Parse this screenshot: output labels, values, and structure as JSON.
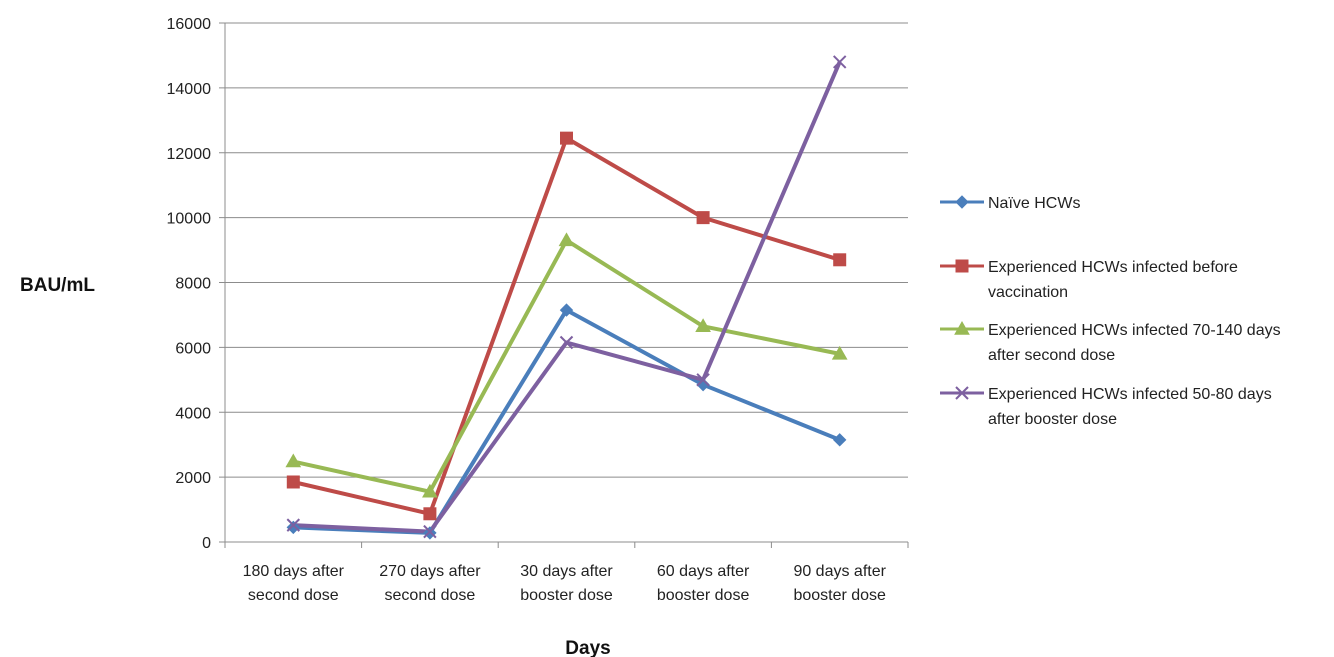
{
  "chart_data": {
    "type": "line",
    "title": "",
    "xlabel": "Days",
    "ylabel": "BAU/mL",
    "ylim": [
      0,
      16000
    ],
    "yticks": [
      0,
      2000,
      4000,
      6000,
      8000,
      10000,
      12000,
      14000,
      16000
    ],
    "grid": true,
    "legend_position": "right",
    "categories": [
      [
        "180 days after",
        "second dose"
      ],
      [
        "270 days after",
        "second dose"
      ],
      [
        "30 days after",
        "booster dose"
      ],
      [
        "60 days after",
        "booster dose"
      ],
      [
        "90 days after",
        "booster dose"
      ]
    ],
    "series": [
      {
        "name": "Naïve HCWs",
        "legend_lines": [
          "Naïve HCWs"
        ],
        "color": "#4a7ebb",
        "marker": "diamond",
        "values": [
          450,
          280,
          7150,
          4850,
          3150
        ]
      },
      {
        "name": "Experienced HCWs infected before vaccination",
        "legend_lines": [
          "Experienced HCWs infected before",
          "vaccination"
        ],
        "color": "#be4b48",
        "marker": "square",
        "values": [
          1850,
          870,
          12450,
          10000,
          8700
        ]
      },
      {
        "name": "Experienced HCWs infected 70-140 days after second dose",
        "legend_lines": [
          "Experienced HCWs infected 70-140 days",
          "after second dose"
        ],
        "color": "#98b954",
        "marker": "triangle",
        "values": [
          2480,
          1550,
          9300,
          6650,
          5800
        ]
      },
      {
        "name": "Experienced HCWs infected 50-80 days after booster dose",
        "legend_lines": [
          "Experienced HCWs infected 50-80 days",
          "after booster dose"
        ],
        "color": "#7d60a0",
        "marker": "x",
        "values": [
          520,
          320,
          6150,
          5000,
          14800
        ]
      }
    ]
  }
}
